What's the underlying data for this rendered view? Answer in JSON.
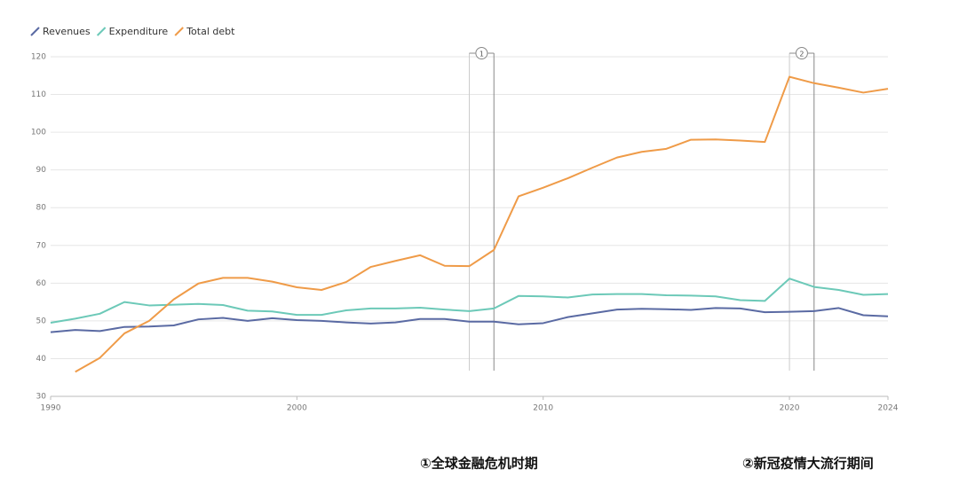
{
  "chart_data": {
    "type": "line",
    "x": [
      1990,
      1991,
      1992,
      1993,
      1994,
      1995,
      1996,
      1997,
      1998,
      1999,
      2000,
      2001,
      2002,
      2003,
      2004,
      2005,
      2006,
      2007,
      2008,
      2009,
      2010,
      2011,
      2012,
      2013,
      2014,
      2015,
      2016,
      2017,
      2018,
      2019,
      2020,
      2021,
      2022,
      2023,
      2024
    ],
    "series": [
      {
        "name": "Revenues",
        "color": "#5a6aa3",
        "values": [
          47,
          47.6,
          47.3,
          48.4,
          48.5,
          48.8,
          50.4,
          50.8,
          50.0,
          50.7,
          50.2,
          50.0,
          49.6,
          49.3,
          49.6,
          50.5,
          50.5,
          49.8,
          49.8,
          49.1,
          49.4,
          51.0,
          52.0,
          53.0,
          53.2,
          53.1,
          52.9,
          53.4,
          53.3,
          52.3,
          52.4,
          52.6,
          53.4,
          51.5,
          51.2
        ]
      },
      {
        "name": "Expenditure",
        "color": "#6cc9b8",
        "values": [
          49.5,
          50.6,
          51.9,
          55.0,
          54.1,
          54.3,
          54.5,
          54.2,
          52.7,
          52.5,
          51.6,
          51.6,
          52.8,
          53.3,
          53.3,
          53.5,
          53.0,
          52.6,
          53.3,
          56.6,
          56.5,
          56.2,
          57.0,
          57.1,
          57.1,
          56.8,
          56.7,
          56.5,
          55.5,
          55.3,
          61.2,
          59.0,
          58.2,
          56.9,
          57.1
        ]
      },
      {
        "name": "Total debt",
        "color": "#ef9b48",
        "values": [
          null,
          36.5,
          40.2,
          46.7,
          50.0,
          55.7,
          59.9,
          61.4,
          61.4,
          60.4,
          58.9,
          58.2,
          60.3,
          64.3,
          65.9,
          67.4,
          64.6,
          64.5,
          68.8,
          83.0,
          85.3,
          87.8,
          90.6,
          93.3,
          94.8,
          95.6,
          98.0,
          98.1,
          97.8,
          97.4,
          114.7,
          113.0,
          111.8,
          110.5,
          111.5
        ]
      }
    ],
    "xlim": [
      1990,
      2024
    ],
    "xticks": [
      1990,
      2000,
      2010,
      2020,
      2024
    ],
    "ylim": [
      30,
      120
    ],
    "yticks": [
      30,
      40,
      50,
      60,
      70,
      80,
      90,
      100,
      110,
      120
    ],
    "grid": true,
    "periods": [
      {
        "start": 2007,
        "end": 2008,
        "label": "1"
      },
      {
        "start": 2020,
        "end": 2021,
        "label": "2"
      }
    ],
    "notes": [
      "①全球金融危机时期",
      "②新冠疫情大流行期间"
    ]
  }
}
